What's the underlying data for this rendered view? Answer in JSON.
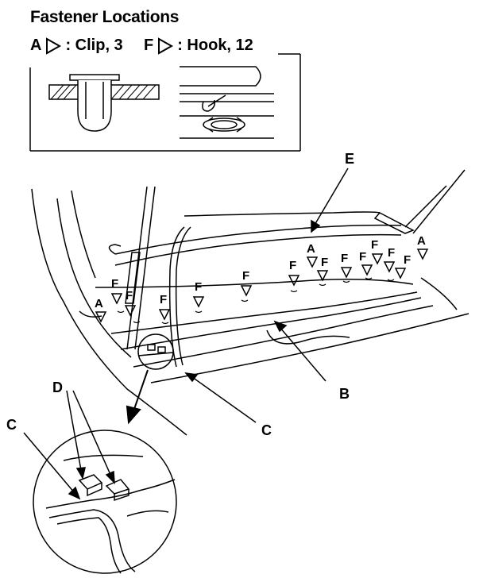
{
  "heading": "Fastener Locations",
  "legend": [
    {
      "letter": "A",
      "text": ": Clip, 3"
    },
    {
      "letter": "F",
      "text": ": Hook, 12"
    }
  ],
  "callouts": {
    "E": "E",
    "B": "B",
    "C_main": "C",
    "C_detail": "C",
    "D": "D"
  },
  "fastener_marks": {
    "A": "A",
    "F": "F"
  }
}
